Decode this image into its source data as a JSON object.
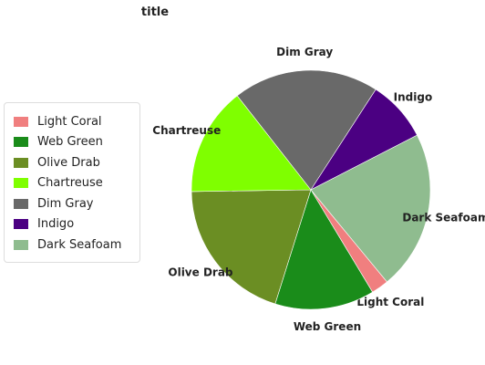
{
  "chart_data": {
    "type": "pie",
    "title": "title",
    "legend_position": "left",
    "categories": [
      "Light Coral",
      "Web Green",
      "Olive Drab",
      "Chartreuse",
      "Dim Gray",
      "Indigo",
      "Dark Seafoam"
    ],
    "values": [
      2.2,
      12.5,
      18.5,
      13.6,
      18.3,
      7.7,
      20.0
    ],
    "colors": [
      "#f07f7f",
      "#1a8c1a",
      "#6b8e23",
      "#7fff00",
      "#696969",
      "#4b0082",
      "#8fbc8f"
    ],
    "start_category": "Light Coral",
    "direction": "clockwise"
  }
}
